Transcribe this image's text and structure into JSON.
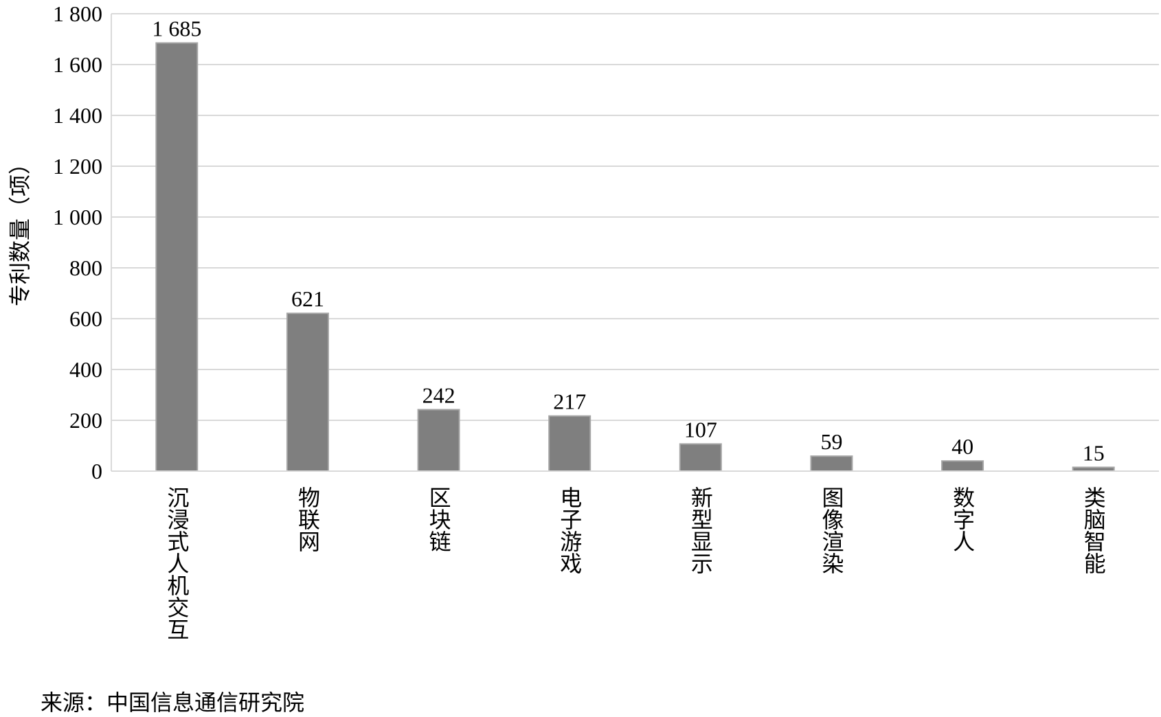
{
  "chart_data": {
    "type": "bar",
    "title": "",
    "xlabel": "",
    "ylabel": "专利数量（项）",
    "categories": [
      "沉浸式人机交互",
      "物联网",
      "区块链",
      "电子游戏",
      "新型显示",
      "图像渲染",
      "数字人",
      "类脑智能"
    ],
    "values": [
      1685,
      621,
      242,
      217,
      107,
      59,
      40,
      15
    ],
    "data_labels": [
      "1 685",
      "621",
      "242",
      "217",
      "107",
      "59",
      "40",
      "15"
    ],
    "ylim": [
      0,
      1800
    ],
    "yticks": [
      0,
      200,
      400,
      600,
      800,
      1000,
      1200,
      1400,
      1600,
      1800
    ],
    "ytick_labels": [
      "0",
      "200",
      "400",
      "600",
      "800",
      "1 000",
      "1 200",
      "1 400",
      "1 600",
      "1 800"
    ],
    "grid": true,
    "bar_color": "#7f7f7f",
    "grid_color": "#d9d9d9"
  },
  "source": "来源：中国信息通信研究院"
}
